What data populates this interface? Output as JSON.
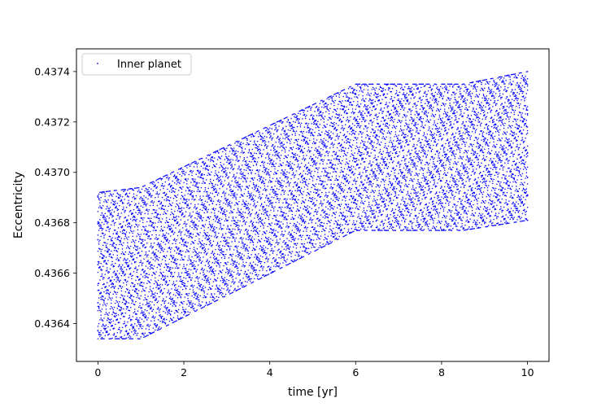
{
  "chart_data": {
    "type": "scatter",
    "title": "",
    "xlabel": "time [yr]",
    "ylabel": "Eccentricity",
    "xlim": [
      -0.5,
      10.5
    ],
    "ylim": [
      0.43625,
      0.43749
    ],
    "x_ticks": [
      0,
      2,
      4,
      6,
      8,
      10
    ],
    "x_tick_labels": [
      "0",
      "2",
      "4",
      "6",
      "8",
      "10"
    ],
    "y_ticks": [
      0.4364,
      0.4366,
      0.4368,
      0.437,
      0.4372,
      0.4374
    ],
    "y_tick_labels": [
      "0.4364",
      "0.4366",
      "0.4368",
      "0.4370",
      "0.4372",
      "0.4374"
    ],
    "grid": false,
    "legend_position": "top-left",
    "series": [
      {
        "name": "Inner planet",
        "color": "#0000ff",
        "marker": "point",
        "description_envelope": {
          "x": [
            0,
            1,
            6,
            8.5,
            10
          ],
          "upper": [
            0.43692,
            0.43694,
            0.43735,
            0.43735,
            0.4374
          ],
          "lower": [
            0.43634,
            0.43634,
            0.43677,
            0.43677,
            0.43681
          ]
        }
      }
    ]
  }
}
